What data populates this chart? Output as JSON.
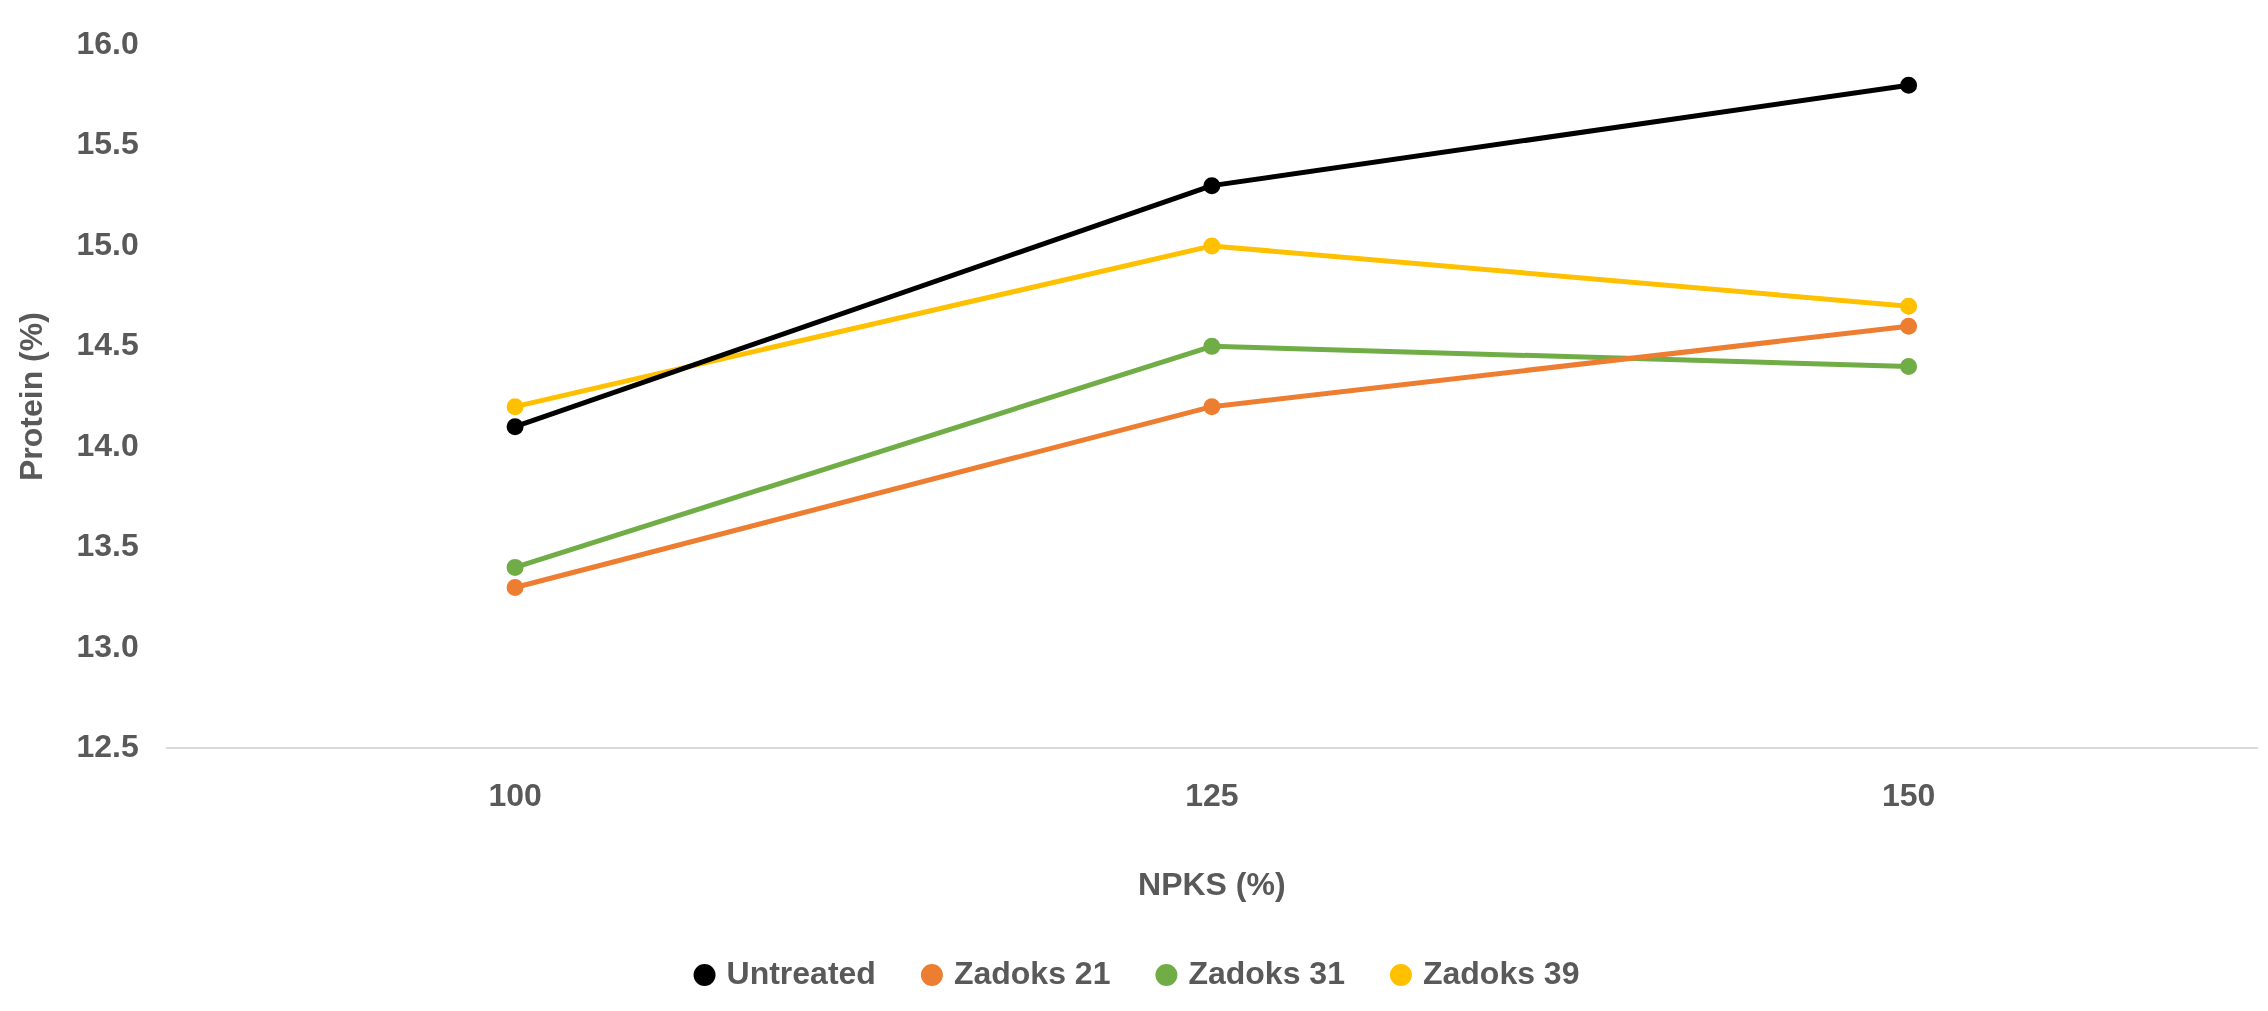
{
  "chart_data": {
    "type": "line",
    "xlabel": "NPKS (%)",
    "ylabel": "Protein (%)",
    "categories": [
      "100",
      "125",
      "150"
    ],
    "series": [
      {
        "name": "Untreated",
        "color": "#000000",
        "values": [
          14.1,
          15.3,
          15.8
        ]
      },
      {
        "name": "Zadoks 21",
        "color": "#ed7d31",
        "values": [
          13.3,
          14.2,
          14.6
        ]
      },
      {
        "name": "Zadoks 31",
        "color": "#70ad47",
        "values": [
          13.4,
          14.5,
          14.4
        ]
      },
      {
        "name": "Zadoks 39",
        "color": "#ffc000",
        "values": [
          14.2,
          15.0,
          14.7
        ]
      }
    ],
    "ylim": [
      12.5,
      16.0
    ],
    "yticks": [
      12.5,
      {
        "value": 13,
        "label": "13.0"
      },
      13.5,
      {
        "value": 14,
        "label": "14.0"
      },
      14.5,
      {
        "value": 15,
        "label": "15.0"
      },
      15.5,
      {
        "value": 16,
        "label": "16.0"
      }
    ],
    "legend": "bottom",
    "marker": "circle",
    "line_style": "solid"
  }
}
